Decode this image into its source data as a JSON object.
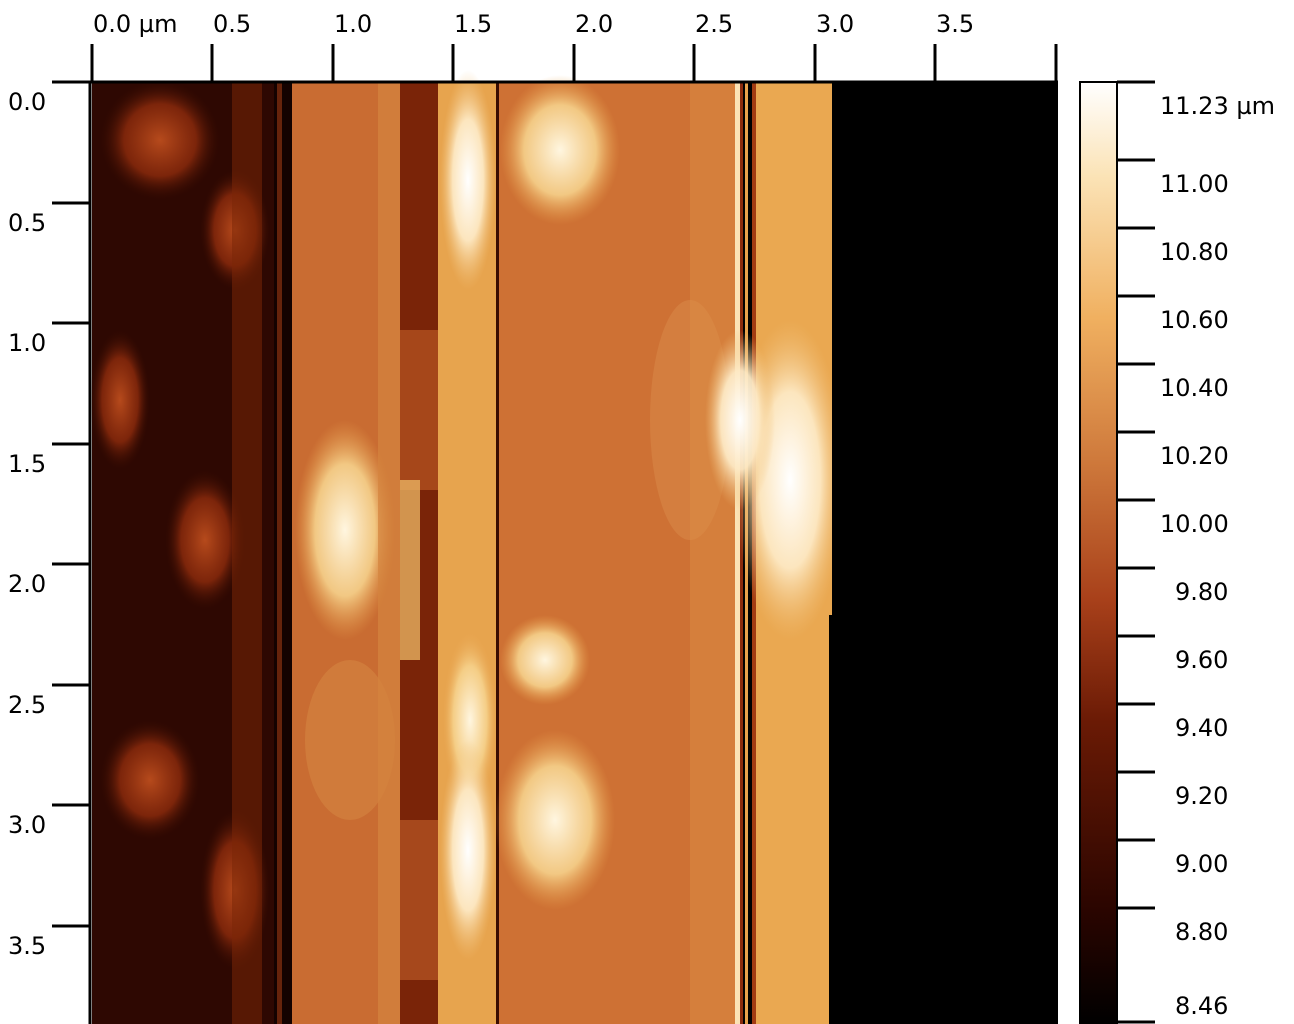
{
  "x_axis": {
    "ticks": [
      "0.0 µm",
      "0.5",
      "1.0",
      "1.5",
      "2.0",
      "2.5",
      "3.0",
      "3.5"
    ]
  },
  "y_axis": {
    "ticks": [
      "0.0",
      "0.5",
      "1.0",
      "1.5",
      "2.0",
      "2.5",
      "3.0",
      "3.5"
    ]
  },
  "colorbar": {
    "max_label": "11.23 µm",
    "ticks": [
      "11.00",
      "10.80",
      "10.60",
      "10.40",
      "10.20",
      "10.00",
      "9.80",
      "9.60",
      "9.40",
      "9.20",
      "9.00",
      "8.80"
    ],
    "min_label": "8.46",
    "colors": [
      "#000000",
      "#2a0500",
      "#6a1a05",
      "#a8401a",
      "#cf7a3c",
      "#f0b060",
      "#fbe3b6",
      "#ffffff"
    ]
  },
  "image": {
    "description_kind": "height-map",
    "regions": [
      {
        "kind": "strip",
        "color": "#3a0d02"
      },
      {
        "kind": "strip",
        "color": "#c86a30"
      },
      {
        "kind": "strip",
        "color": "#6e2008"
      },
      {
        "kind": "strip",
        "color": "#e8a24c"
      },
      {
        "kind": "strip",
        "color": "#c96a30"
      },
      {
        "kind": "strip",
        "color": "#e7a750"
      },
      {
        "kind": "strip",
        "color": "#000000"
      }
    ]
  }
}
